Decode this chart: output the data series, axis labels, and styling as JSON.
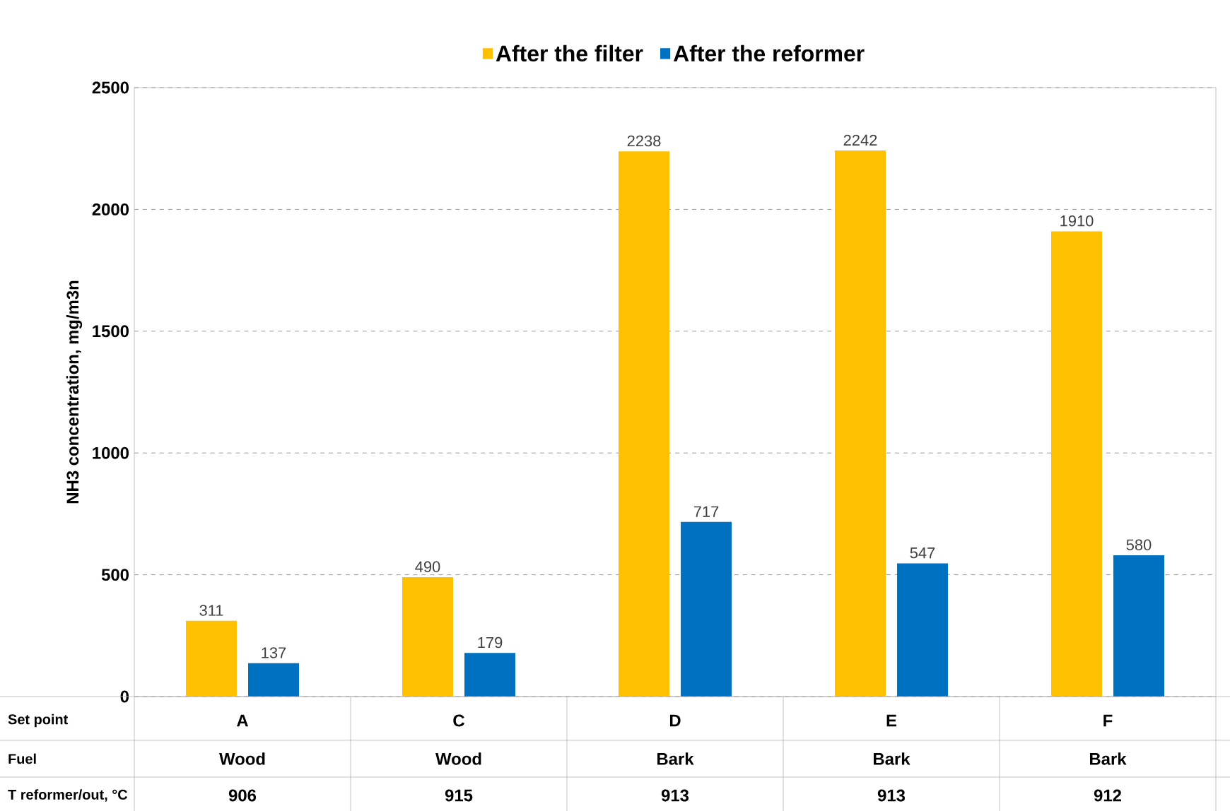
{
  "chart_data": {
    "type": "bar",
    "ylabel": "NH3 concentration, mg/m3n",
    "categories": [
      "A",
      "C",
      "D",
      "E",
      "F"
    ],
    "series": [
      {
        "name": "After the filter",
        "color": "#ffc000",
        "values": [
          311,
          490,
          2238,
          2242,
          1910
        ]
      },
      {
        "name": "After the reformer",
        "color": "#0070c0",
        "values": [
          137,
          179,
          717,
          547,
          580
        ]
      }
    ],
    "ylim": [
      0,
      2500
    ],
    "yticks": [
      0,
      500,
      1000,
      1500,
      2000,
      2500
    ],
    "grid": "y",
    "legend": "top",
    "data_labels": true,
    "annotations": [
      "Set point",
      "Fuel",
      "T reformer/out, °C",
      "Wood",
      "Wood",
      "Bark",
      "Bark",
      "Bark",
      "906",
      "915",
      "913",
      "913",
      "912"
    ]
  }
}
